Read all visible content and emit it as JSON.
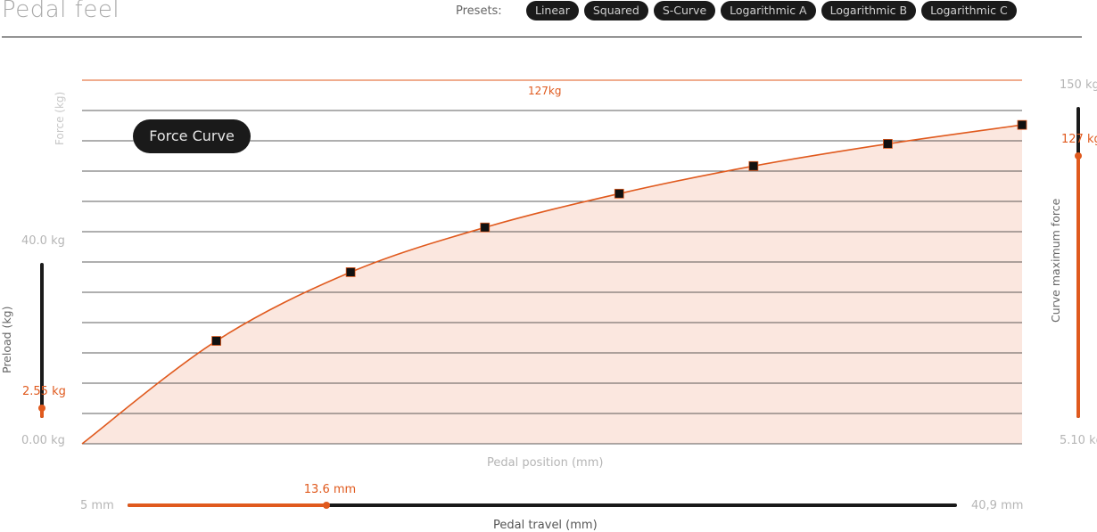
{
  "header": {
    "title": "Pedal feel",
    "presets_label": "Presets:",
    "presets": [
      "Linear",
      "Squared",
      "S-Curve",
      "Logarithmic A",
      "Logarithmic B",
      "Logarithmic C"
    ]
  },
  "chart": {
    "badge": "Force Curve",
    "ylabel": "Force (kg)",
    "xlabel": "Pedal position (mm)",
    "max_line_label": "127kg"
  },
  "preload": {
    "axis_label": "Preload (kg)",
    "max_label": "40.0 kg",
    "min_label": "0.00 kg",
    "value_label": "2.55 kg",
    "value": 2.55,
    "min": 0,
    "max": 40.0
  },
  "max_force": {
    "axis_label": "Curve maximum force",
    "max_label": "150 kg",
    "min_label": "5.10 kg",
    "value_label": "127 kg",
    "value": 127,
    "min": 5.1,
    "max": 150
  },
  "travel": {
    "axis_label": "Pedal travel (mm)",
    "min_label": "5 mm",
    "max_label": "40,9 mm",
    "value_label": "13.6 mm",
    "value": 13.6,
    "min": 5,
    "max": 40.9
  },
  "colors": {
    "accent": "#e05a1e",
    "fill": "#fbe7df",
    "dark": "#1a1a1a"
  },
  "chart_data": {
    "type": "line",
    "x": [
      0,
      1,
      2,
      3,
      4,
      5,
      6,
      7
    ],
    "points_x": [
      1,
      2,
      3,
      4,
      5,
      6,
      7
    ],
    "values": [
      0,
      0.283,
      0.472,
      0.595,
      0.688,
      0.764,
      0.825,
      0.877
    ],
    "ylim": [
      0,
      1
    ],
    "xlim": [
      0,
      7
    ],
    "grid": true,
    "gridlines": 13,
    "max_line": 1
  }
}
